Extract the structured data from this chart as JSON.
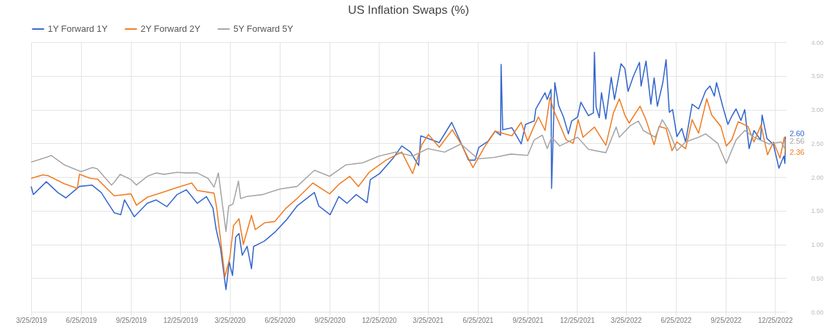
{
  "chart_data": {
    "type": "line",
    "title": "US Inflation Swaps (%)",
    "legend": "top",
    "grid": true,
    "xlim": [
      "2019-03-25",
      "2023-01-14"
    ],
    "xticks": [
      {
        "value": "2019-03-25",
        "label": "3/25/2019"
      },
      {
        "value": "2019-06-25",
        "label": "6/25/2019"
      },
      {
        "value": "2019-09-25",
        "label": "9/25/2019"
      },
      {
        "value": "2019-12-25",
        "label": "12/25/2019"
      },
      {
        "value": "2020-03-25",
        "label": "3/25/2020"
      },
      {
        "value": "2020-06-25",
        "label": "6/25/2020"
      },
      {
        "value": "2020-09-25",
        "label": "9/25/2020"
      },
      {
        "value": "2020-12-25",
        "label": "12/25/2020"
      },
      {
        "value": "2021-03-25",
        "label": "3/25/2021"
      },
      {
        "value": "2021-06-25",
        "label": "6/25/2021"
      },
      {
        "value": "2021-09-25",
        "label": "9/25/2021"
      },
      {
        "value": "2021-12-25",
        "label": "12/25/2021"
      },
      {
        "value": "2022-03-25",
        "label": "3/25/2022"
      },
      {
        "value": "2022-06-25",
        "label": "6/25/2022"
      },
      {
        "value": "2022-09-25",
        "label": "9/25/2022"
      },
      {
        "value": "2022-12-25",
        "label": "12/25/2022"
      }
    ],
    "ylim": [
      0,
      4
    ],
    "yticks": [
      {
        "value": 0,
        "label": "0.00"
      },
      {
        "value": 0.5,
        "label": "0.50"
      },
      {
        "value": 1,
        "label": "1.00"
      },
      {
        "value": 1.5,
        "label": "1.50"
      },
      {
        "value": 2,
        "label": "2.00"
      },
      {
        "value": 2.5,
        "label": "2.50"
      },
      {
        "value": 3,
        "label": "3.00"
      },
      {
        "value": 3.5,
        "label": "3.50"
      },
      {
        "value": 4,
        "label": "4.00"
      }
    ],
    "series": [
      {
        "name": "1Y Forward 1Y",
        "color": "#3366cc",
        "x": [
          "2019-03-25",
          "2019-03-29",
          "2019-04-22",
          "2019-05-13",
          "2019-05-28",
          "2019-06-22",
          "2019-07-15",
          "2019-08-01",
          "2019-08-25",
          "2019-09-06",
          "2019-09-13",
          "2019-10-01",
          "2019-10-25",
          "2019-11-10",
          "2019-11-30",
          "2019-12-19",
          "2020-01-05",
          "2020-01-25",
          "2020-02-11",
          "2020-02-23",
          "2020-02-29",
          "2020-03-08",
          "2020-03-18",
          "2020-03-24",
          "2020-03-30",
          "2020-04-05",
          "2020-04-11",
          "2020-04-17",
          "2020-04-26",
          "2020-05-04",
          "2020-05-08",
          "2020-05-28",
          "2020-06-16",
          "2020-07-07",
          "2020-07-27",
          "2020-08-28",
          "2020-09-05",
          "2020-09-26",
          "2020-10-12",
          "2020-10-27",
          "2020-11-13",
          "2020-12-03",
          "2020-12-09",
          "2020-12-26",
          "2021-01-20",
          "2021-02-05",
          "2021-02-21",
          "2021-03-08",
          "2021-03-12",
          "2021-04-15",
          "2021-05-08",
          "2021-05-26",
          "2021-06-08",
          "2021-06-20",
          "2021-06-27",
          "2021-07-14",
          "2021-07-27",
          "2021-08-06",
          "2021-08-07",
          "2021-08-10",
          "2021-08-27",
          "2021-09-13",
          "2021-09-21",
          "2021-10-07",
          "2021-10-10",
          "2021-10-27",
          "2021-10-31",
          "2021-11-07",
          "2021-11-08",
          "2021-11-14",
          "2021-11-21",
          "2021-11-30",
          "2021-12-09",
          "2021-12-15",
          "2021-12-26",
          "2022-01-01",
          "2022-01-15",
          "2022-01-24",
          "2022-01-26",
          "2022-01-29",
          "2022-02-04",
          "2022-02-08",
          "2022-02-16",
          "2022-02-26",
          "2022-03-04",
          "2022-03-16",
          "2022-03-23",
          "2022-03-29",
          "2022-04-08",
          "2022-04-19",
          "2022-04-22",
          "2022-05-01",
          "2022-05-10",
          "2022-05-16",
          "2022-05-22",
          "2022-06-01",
          "2022-06-07",
          "2022-06-13",
          "2022-06-19",
          "2022-06-27",
          "2022-07-06",
          "2022-07-13",
          "2022-07-25",
          "2022-08-06",
          "2022-08-19",
          "2022-08-27",
          "2022-09-04",
          "2022-09-08",
          "2022-09-20",
          "2022-09-29",
          "2022-10-06",
          "2022-10-14",
          "2022-10-23",
          "2022-10-30",
          "2022-11-07",
          "2022-11-16",
          "2022-11-28",
          "2022-12-01",
          "2022-12-10",
          "2022-12-22",
          "2023-01-01",
          "2023-01-10",
          "2023-01-12",
          "2023-01-13"
        ],
        "values": [
          1.86,
          1.74,
          1.93,
          1.77,
          1.69,
          1.86,
          1.88,
          1.77,
          1.47,
          1.44,
          1.66,
          1.41,
          1.61,
          1.66,
          1.56,
          1.74,
          1.81,
          1.61,
          1.71,
          1.54,
          1.22,
          0.94,
          0.33,
          0.74,
          0.54,
          1.11,
          1.16,
          0.84,
          0.97,
          0.64,
          0.97,
          1.05,
          1.18,
          1.36,
          1.57,
          1.77,
          1.57,
          1.44,
          1.71,
          1.61,
          1.74,
          1.62,
          1.96,
          2.05,
          2.28,
          2.46,
          2.37,
          2.17,
          2.61,
          2.51,
          2.81,
          2.49,
          2.25,
          2.25,
          2.44,
          2.53,
          2.68,
          2.62,
          3.67,
          2.7,
          2.73,
          2.49,
          2.78,
          2.83,
          3.01,
          3.25,
          3.15,
          3.3,
          1.83,
          3.4,
          3.06,
          2.89,
          2.64,
          2.83,
          2.89,
          3.11,
          2.91,
          2.95,
          3.85,
          3.04,
          2.88,
          3.25,
          2.86,
          3.48,
          3.15,
          3.68,
          3.61,
          3.27,
          3.5,
          3.7,
          3.35,
          3.72,
          3.08,
          3.47,
          3.05,
          3.4,
          3.74,
          2.96,
          3.0,
          2.6,
          2.72,
          2.52,
          3.08,
          3.01,
          3.28,
          3.35,
          3.2,
          3.4,
          3.03,
          2.78,
          2.9,
          3.01,
          2.84,
          3.0,
          2.42,
          2.69,
          2.55,
          2.92,
          2.57,
          2.48,
          2.13,
          2.31,
          2.2,
          2.6
        ],
        "value_labels": [
          null,
          null,
          null,
          null,
          null,
          null,
          null,
          null,
          null,
          null,
          null,
          null,
          null,
          null,
          null,
          null,
          null,
          null,
          null,
          null,
          null,
          null,
          null,
          null,
          null,
          null,
          null,
          null,
          null,
          null,
          null,
          null,
          null,
          null,
          null,
          null,
          null,
          null,
          null,
          null,
          null,
          null,
          null,
          null,
          null,
          null,
          null,
          null,
          null,
          null,
          null,
          null,
          null,
          null,
          null,
          null,
          null,
          null,
          null,
          null,
          null,
          null,
          null,
          null,
          null,
          null,
          null,
          null,
          null,
          null,
          null,
          null,
          null,
          null,
          null,
          null,
          null,
          null,
          null,
          null,
          null,
          null,
          null,
          null,
          null,
          null,
          null,
          null,
          null,
          null,
          null,
          null,
          null,
          null,
          null,
          null,
          null,
          null,
          null,
          null,
          null,
          null,
          null,
          null,
          null,
          null,
          null,
          null,
          null,
          null,
          null,
          null,
          null,
          null,
          null,
          null,
          null,
          null,
          null,
          null,
          null,
          null,
          null,
          "2.60"
        ]
      },
      {
        "name": "2Y Forward 2Y",
        "color": "#f07b22",
        "x": [
          "2019-03-25",
          "2019-04-15",
          "2019-04-25",
          "2019-05-25",
          "2019-06-18",
          "2019-06-22",
          "2019-07-12",
          "2019-07-25",
          "2019-08-25",
          "2019-09-25",
          "2019-10-05",
          "2019-10-25",
          "2019-11-25",
          "2019-12-25",
          "2020-01-15",
          "2020-01-25",
          "2020-02-25",
          "2020-03-01",
          "2020-03-08",
          "2020-03-16",
          "2020-03-25",
          "2020-04-01",
          "2020-04-11",
          "2020-04-19",
          "2020-05-04",
          "2020-05-11",
          "2020-05-28",
          "2020-06-16",
          "2020-07-07",
          "2020-07-27",
          "2020-08-25",
          "2020-09-25",
          "2020-10-12",
          "2020-11-01",
          "2020-11-17",
          "2020-12-07",
          "2021-01-07",
          "2021-02-05",
          "2021-02-25",
          "2021-03-14",
          "2021-03-26",
          "2021-04-15",
          "2021-05-09",
          "2021-05-26",
          "2021-06-16",
          "2021-07-07",
          "2021-07-27",
          "2021-08-27",
          "2021-09-13",
          "2021-09-25",
          "2021-10-07",
          "2021-10-15",
          "2021-10-27",
          "2021-11-05",
          "2021-11-11",
          "2021-11-23",
          "2021-12-05",
          "2021-12-18",
          "2021-12-27",
          "2022-01-05",
          "2022-01-26",
          "2022-02-16",
          "2022-03-02",
          "2022-03-13",
          "2022-03-23",
          "2022-03-31",
          "2022-04-20",
          "2022-05-01",
          "2022-05-16",
          "2022-05-25",
          "2022-06-07",
          "2022-06-18",
          "2022-06-27",
          "2022-07-13",
          "2022-07-25",
          "2022-08-06",
          "2022-08-21",
          "2022-08-30",
          "2022-09-16",
          "2022-09-26",
          "2022-10-06",
          "2022-10-18",
          "2022-11-05",
          "2022-11-16",
          "2022-11-29",
          "2022-12-11",
          "2022-12-22",
          "2023-01-03",
          "2023-01-11",
          "2023-01-13"
        ],
        "values": [
          1.98,
          2.03,
          2.02,
          1.9,
          1.83,
          2.04,
          1.98,
          1.97,
          1.72,
          1.75,
          1.58,
          1.7,
          1.78,
          1.86,
          1.91,
          1.8,
          1.76,
          1.54,
          1.07,
          0.52,
          0.8,
          1.28,
          1.38,
          1.0,
          1.43,
          1.22,
          1.32,
          1.34,
          1.54,
          1.68,
          1.91,
          1.75,
          1.89,
          2.01,
          1.86,
          2.07,
          2.25,
          2.37,
          2.05,
          2.48,
          2.63,
          2.44,
          2.7,
          2.48,
          2.14,
          2.44,
          2.68,
          2.61,
          2.81,
          2.53,
          2.76,
          2.89,
          2.69,
          3.18,
          3.01,
          2.78,
          2.55,
          2.5,
          2.85,
          2.59,
          2.74,
          2.47,
          2.95,
          3.16,
          2.92,
          2.8,
          3.05,
          2.85,
          2.48,
          2.75,
          2.72,
          2.39,
          2.52,
          2.42,
          2.85,
          2.65,
          3.16,
          2.92,
          2.75,
          2.46,
          2.55,
          2.82,
          2.75,
          2.52,
          2.77,
          2.33,
          2.52,
          2.28,
          2.59,
          2.36
        ],
        "value_labels": [
          null,
          null,
          null,
          null,
          null,
          null,
          null,
          null,
          null,
          null,
          null,
          null,
          null,
          null,
          null,
          null,
          null,
          null,
          null,
          null,
          null,
          null,
          null,
          null,
          null,
          null,
          null,
          null,
          null,
          null,
          null,
          null,
          null,
          null,
          null,
          null,
          null,
          null,
          null,
          null,
          null,
          null,
          null,
          null,
          null,
          null,
          null,
          null,
          null,
          null,
          null,
          null,
          null,
          null,
          null,
          null,
          null,
          null,
          null,
          null,
          null,
          null,
          null,
          null,
          null,
          null,
          null,
          null,
          null,
          null,
          null,
          null,
          null,
          null,
          null,
          null,
          null,
          null,
          null,
          null,
          null,
          null,
          null,
          null,
          null,
          null,
          null,
          null,
          null,
          "2.36"
        ]
      },
      {
        "name": "5Y Forward 5Y",
        "color": "#a5a5a5",
        "x": [
          "2019-03-25",
          "2019-04-25",
          "2019-05-01",
          "2019-05-25",
          "2019-06-25",
          "2019-07-16",
          "2019-07-25",
          "2019-08-20",
          "2019-08-25",
          "2019-09-05",
          "2019-09-25",
          "2019-10-05",
          "2019-10-25",
          "2019-11-10",
          "2019-11-25",
          "2019-12-19",
          "2020-01-05",
          "2020-01-25",
          "2020-02-14",
          "2020-02-25",
          "2020-03-04",
          "2020-03-12",
          "2020-03-18",
          "2020-03-23",
          "2020-03-31",
          "2020-04-10",
          "2020-04-14",
          "2020-04-25",
          "2020-05-25",
          "2020-06-25",
          "2020-07-27",
          "2020-08-28",
          "2020-09-25",
          "2020-10-25",
          "2020-11-25",
          "2020-12-25",
          "2021-01-25",
          "2021-02-25",
          "2021-03-25",
          "2021-04-25",
          "2021-05-25",
          "2021-06-25",
          "2021-07-25",
          "2021-08-25",
          "2021-09-25",
          "2021-10-07",
          "2021-10-22",
          "2021-10-31",
          "2021-11-08",
          "2021-11-23",
          "2021-12-26",
          "2022-01-15",
          "2022-02-16",
          "2022-03-07",
          "2022-03-13",
          "2022-04-02",
          "2022-04-17",
          "2022-04-26",
          "2022-05-18",
          "2022-05-31",
          "2022-06-12",
          "2022-06-27",
          "2022-07-13",
          "2022-08-06",
          "2022-08-19",
          "2022-09-10",
          "2022-09-26",
          "2022-10-14",
          "2022-10-30",
          "2022-11-16",
          "2022-12-14",
          "2023-01-05",
          "2023-01-12",
          "2023-01-13"
        ],
        "values": [
          2.22,
          2.3,
          2.32,
          2.18,
          2.08,
          2.14,
          2.12,
          1.88,
          1.92,
          2.04,
          1.96,
          1.88,
          2.01,
          2.06,
          2.04,
          2.07,
          2.06,
          2.06,
          1.98,
          1.85,
          2.06,
          1.56,
          1.19,
          1.57,
          1.6,
          1.94,
          1.68,
          1.71,
          1.74,
          1.82,
          1.86,
          2.1,
          2.01,
          2.18,
          2.21,
          2.31,
          2.37,
          2.31,
          2.42,
          2.37,
          2.49,
          2.27,
          2.29,
          2.34,
          2.32,
          2.55,
          2.62,
          2.42,
          2.59,
          2.46,
          2.59,
          2.41,
          2.36,
          2.74,
          2.59,
          2.76,
          2.83,
          2.69,
          2.59,
          2.85,
          2.69,
          2.39,
          2.52,
          2.59,
          2.64,
          2.5,
          2.2,
          2.55,
          2.69,
          2.59,
          2.49,
          2.52,
          2.42,
          2.56
        ],
        "value_labels": [
          null,
          null,
          null,
          null,
          null,
          null,
          null,
          null,
          null,
          null,
          null,
          null,
          null,
          null,
          null,
          null,
          null,
          null,
          null,
          null,
          null,
          null,
          null,
          null,
          null,
          null,
          null,
          null,
          null,
          null,
          null,
          null,
          null,
          null,
          null,
          null,
          null,
          null,
          null,
          null,
          null,
          null,
          null,
          null,
          null,
          null,
          null,
          null,
          null,
          null,
          null,
          null,
          null,
          null,
          null,
          null,
          null,
          null,
          null,
          null,
          null,
          null,
          null,
          null,
          null,
          null,
          null,
          null,
          null,
          null,
          null,
          null,
          null,
          "2.56"
        ]
      }
    ]
  }
}
